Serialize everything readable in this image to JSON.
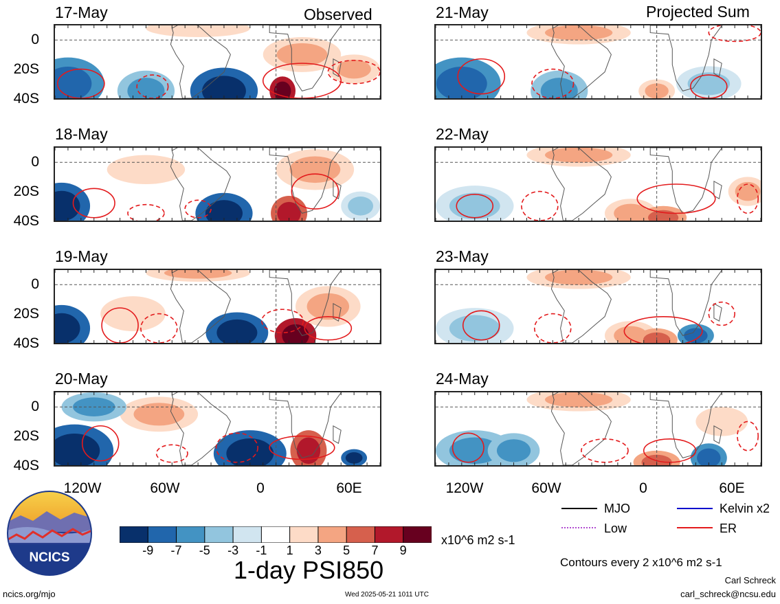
{
  "column_titles": {
    "left": "Observed",
    "right": "Projected Sum"
  },
  "panels": {
    "left": [
      "17-May",
      "18-May",
      "19-May",
      "20-May"
    ],
    "right": [
      "21-May",
      "22-May",
      "23-May",
      "24-May"
    ]
  },
  "lat_labels": [
    "0",
    "20S",
    "40S"
  ],
  "lon_labels": [
    "120W",
    "60W",
    "0",
    "60E"
  ],
  "colorbar": {
    "ticks": [
      "-9",
      "-7",
      "-5",
      "-3",
      "-1",
      "1",
      "3",
      "5",
      "7",
      "9"
    ],
    "colors": [
      "#08306b",
      "#2166ac",
      "#4393c3",
      "#92c5de",
      "#d1e5f0",
      "#ffffff",
      "#fddbc7",
      "#f4a582",
      "#d6604d",
      "#b2182b",
      "#67001f"
    ],
    "units": "x10^6 m2 s-1",
    "title": "1-day PSI850"
  },
  "legend": {
    "items": [
      {
        "label": "MJO",
        "color": "#000000",
        "style": "solid"
      },
      {
        "label": "Kelvin x2",
        "color": "#0000cc",
        "style": "solid"
      },
      {
        "label": "Low",
        "color": "#b04bd0",
        "style": "dotted"
      },
      {
        "label": "ER",
        "color": "#e31a1c",
        "style": "solid"
      }
    ],
    "contour_note": "Contours every 2 x10^6 m2 s-1"
  },
  "logo": {
    "text": "NCICS"
  },
  "footer": {
    "url": "ncics.org/mjo",
    "timestamp": "Wed 2025-05-21 1011 UTC",
    "author": "Carl Schreck",
    "email": "carl_schreck@ncsu.edu"
  }
}
